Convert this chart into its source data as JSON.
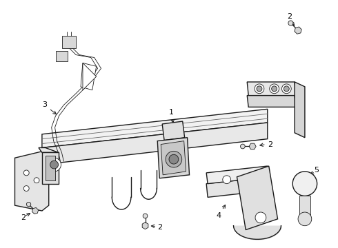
{
  "bg_color": "#ffffff",
  "line_color": "#1a1a1a",
  "label_color": "#000000",
  "lw_main": 1.0,
  "lw_thin": 0.6,
  "figsize": [
    4.9,
    3.6
  ],
  "dpi": 100,
  "label_fs": 8
}
